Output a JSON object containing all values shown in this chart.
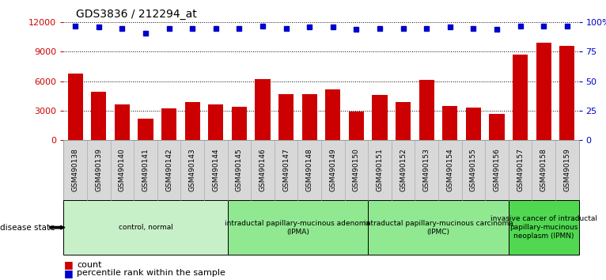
{
  "title": "GDS3836 / 212294_at",
  "samples": [
    "GSM490138",
    "GSM490139",
    "GSM490140",
    "GSM490141",
    "GSM490142",
    "GSM490143",
    "GSM490144",
    "GSM490145",
    "GSM490146",
    "GSM490147",
    "GSM490148",
    "GSM490149",
    "GSM490150",
    "GSM490151",
    "GSM490152",
    "GSM490153",
    "GSM490154",
    "GSM490155",
    "GSM490156",
    "GSM490157",
    "GSM490158",
    "GSM490159"
  ],
  "counts": [
    6800,
    4900,
    3600,
    2200,
    3200,
    3900,
    3600,
    3400,
    6200,
    4700,
    4700,
    5200,
    2900,
    4600,
    3900,
    6100,
    3500,
    3300,
    2700,
    8700,
    9900,
    9600
  ],
  "percentile_ranks": [
    97,
    96,
    95,
    91,
    95,
    95,
    95,
    95,
    97,
    95,
    96,
    96,
    94,
    95,
    95,
    95,
    96,
    95,
    94,
    97,
    97,
    97
  ],
  "groups": [
    {
      "label": "control, normal",
      "start": 0,
      "end": 7,
      "color": "#c8f0c8"
    },
    {
      "label": "intraductal papillary-mucinous adenoma\n(IPMA)",
      "start": 7,
      "end": 13,
      "color": "#90e890"
    },
    {
      "label": "intraductal papillary-mucinous carcinoma\n(IPMC)",
      "start": 13,
      "end": 19,
      "color": "#90e890"
    },
    {
      "label": "invasive cancer of intraductal\npapillary-mucinous\nneoplasm (IPMN)",
      "start": 19,
      "end": 22,
      "color": "#50d850"
    }
  ],
  "bar_color": "#cc0000",
  "dot_color": "#0000cc",
  "ylim_left": [
    0,
    12000
  ],
  "ylim_right": [
    0,
    100
  ],
  "yticks_left": [
    0,
    3000,
    6000,
    9000,
    12000
  ],
  "yticks_right": [
    0,
    25,
    50,
    75,
    100
  ],
  "bg_color": "#ffffff",
  "tick_label_color": "#cc0000",
  "right_tick_color": "#0000cc"
}
